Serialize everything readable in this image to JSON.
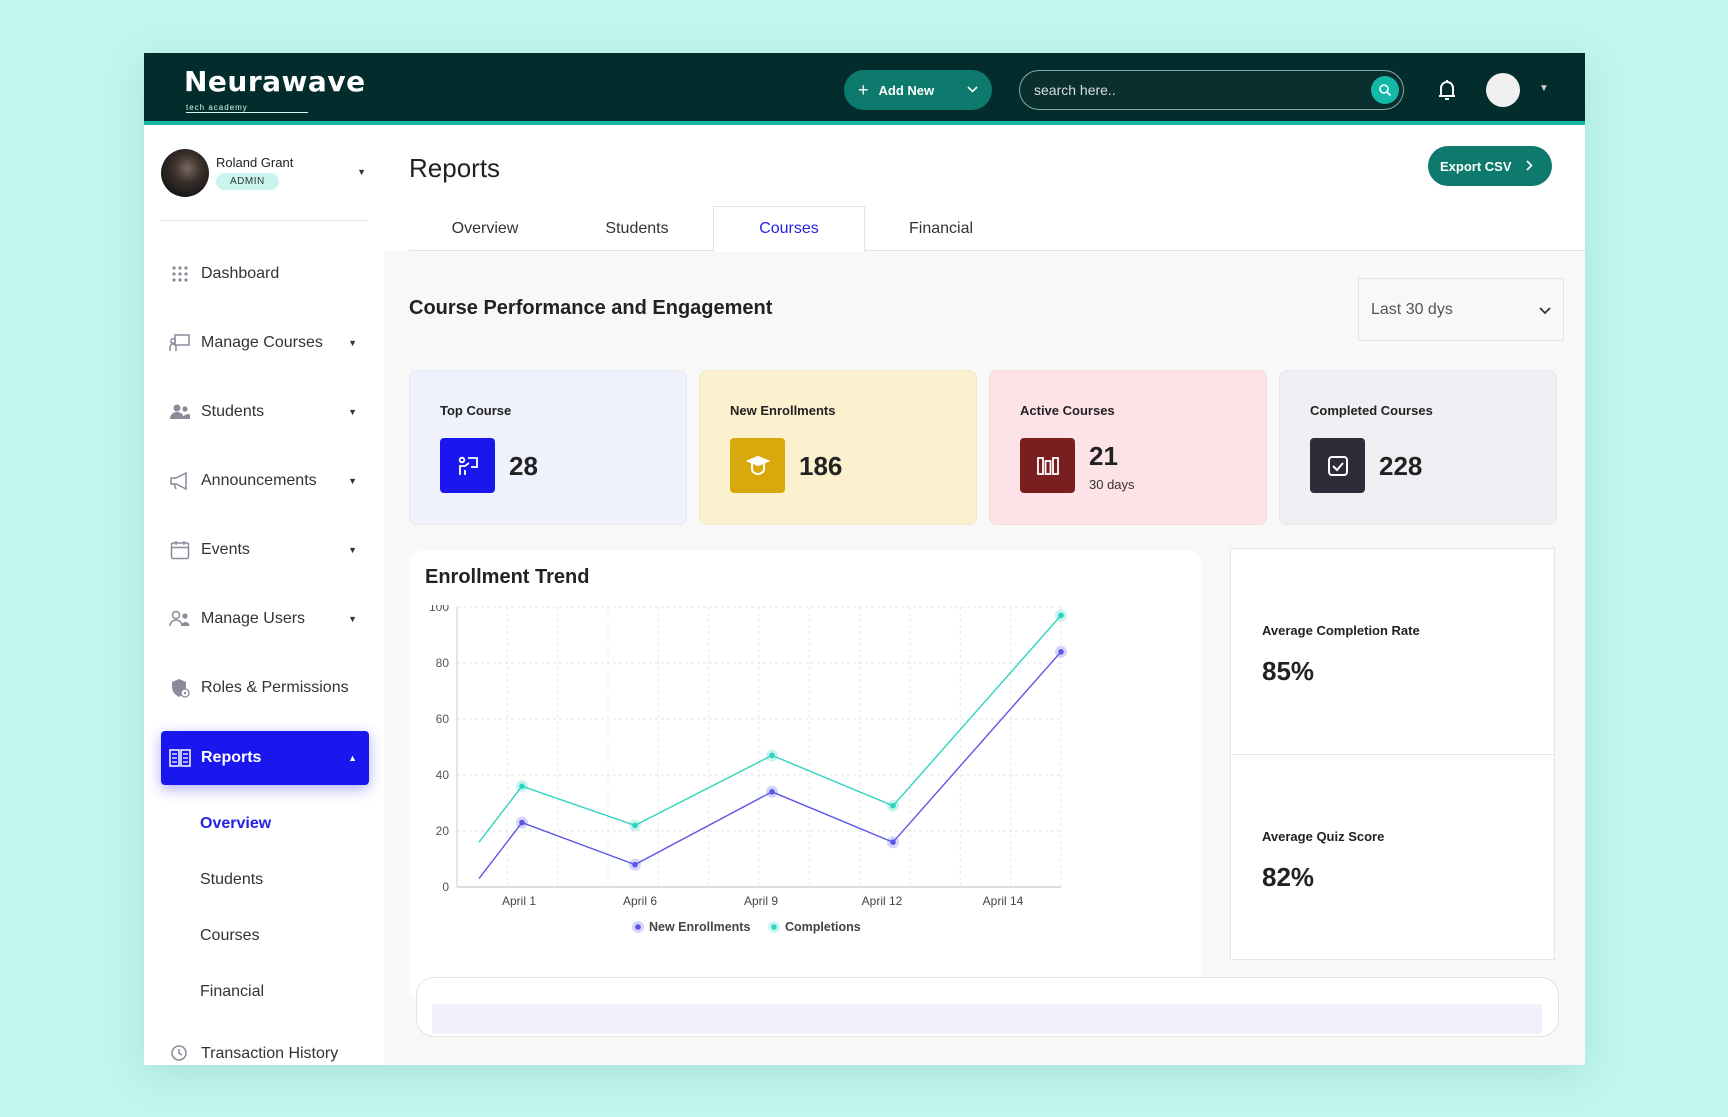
{
  "brand": {
    "logo_text": "Neurawave",
    "logo_sub": "tech academy"
  },
  "topbar": {
    "add_new_label": "Add New",
    "search_placeholder": "search here.."
  },
  "user": {
    "name": "Roland Grant",
    "role": "ADMIN"
  },
  "sidebar": {
    "items": [
      {
        "label": "Dashboard",
        "icon": "grid-icon"
      },
      {
        "label": "Manage Courses",
        "icon": "classroom-icon"
      },
      {
        "label": "Students",
        "icon": "users-icon"
      },
      {
        "label": "Announcements",
        "icon": "megaphone-icon"
      },
      {
        "label": "Events",
        "icon": "calendar-icon"
      },
      {
        "label": "Manage Users",
        "icon": "user-manage-icon"
      },
      {
        "label": "Roles & Permissions",
        "icon": "shield-icon"
      },
      {
        "label": "Reports",
        "icon": "report-icon"
      },
      {
        "label": "Transaction History",
        "icon": "transaction-icon"
      }
    ],
    "sub_items": [
      {
        "label": "Overview"
      },
      {
        "label": "Students"
      },
      {
        "label": "Courses"
      },
      {
        "label": "Financial"
      }
    ]
  },
  "page": {
    "title": "Reports",
    "export_label": "Export CSV",
    "tabs": [
      {
        "label": "Overview"
      },
      {
        "label": "Students"
      },
      {
        "label": "Courses"
      },
      {
        "label": "Financial"
      }
    ],
    "section_title": "Course Performance and Engagement",
    "period": "Last 30 dys"
  },
  "cards": [
    {
      "label": "Top Course",
      "value": "28",
      "bg": "#eff2fd",
      "icon_bg": "#1a16ee",
      "icon": "presentation-icon"
    },
    {
      "label": "New Enrollments",
      "value": "186",
      "bg": "#fbf1cf",
      "icon_bg": "#d9a80b",
      "icon": "graduation-cap-icon"
    },
    {
      "label": "Active Courses",
      "value": "21",
      "sub": "30 days",
      "bg": "#fde3e7",
      "icon_bg": "#7a1f1f",
      "icon": "books-icon"
    },
    {
      "label": "Completed Courses",
      "value": "228",
      "bg": "#f0f0f4",
      "icon_bg": "#2d2d3a",
      "icon": "check-square-icon"
    }
  ],
  "stats": [
    {
      "label": "Average Completion Rate",
      "value": "85%"
    },
    {
      "label": "Average Quiz Score",
      "value": "82%"
    }
  ],
  "chart_data": {
    "type": "line",
    "title": "Enrollment Trend",
    "x_ticks": [
      "April 1",
      "April 6",
      "April 9",
      "April 12",
      "April 14"
    ],
    "ylim": [
      0,
      100
    ],
    "y_ticks": [
      0,
      20,
      40,
      60,
      80,
      100
    ],
    "grid": true,
    "legend_position": "bottom-center",
    "series": [
      {
        "name": "New Enrollments",
        "color": "#5b57e6",
        "points": [
          [
            0,
            3
          ],
          [
            1,
            23
          ],
          [
            2,
            8
          ],
          [
            3,
            34
          ],
          [
            4,
            16
          ],
          [
            5,
            84
          ]
        ],
        "line_only_first": true
      },
      {
        "name": "Completions",
        "color": "#2dd4bf",
        "points": [
          [
            0,
            16
          ],
          [
            1,
            36
          ],
          [
            2,
            22
          ],
          [
            3,
            47
          ],
          [
            4,
            29
          ],
          [
            5,
            97
          ]
        ],
        "line_only_first": true
      }
    ]
  }
}
